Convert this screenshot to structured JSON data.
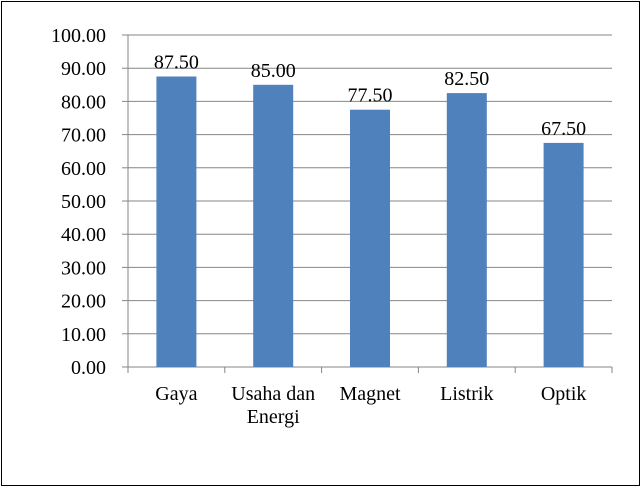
{
  "chart_data": {
    "type": "bar",
    "categories": [
      "Gaya",
      "Usaha dan Energi",
      "Magnet",
      "Listrik",
      "Optik"
    ],
    "values": [
      87.5,
      85,
      77.5,
      82.5,
      67.5
    ],
    "value_labels": [
      "87.50",
      "85.00",
      "77.50",
      "82.50",
      "67.50"
    ],
    "color": "#4f81bd",
    "ylim": [
      0,
      100
    ],
    "yticks": [
      {
        "value": 0,
        "label": "0.00"
      },
      {
        "value": 10,
        "label": "10.00"
      },
      {
        "value": 20,
        "label": "20.00"
      },
      {
        "value": 30,
        "label": "30.00"
      },
      {
        "value": 40,
        "label": "40.00"
      },
      {
        "value": 50,
        "label": "50.00"
      },
      {
        "value": 60,
        "label": "60.00"
      },
      {
        "value": 70,
        "label": "70.00"
      },
      {
        "value": 80,
        "label": "80.00"
      },
      {
        "value": 90,
        "label": "90.00"
      },
      {
        "value": 100,
        "label": "100.00"
      }
    ],
    "grid": true
  }
}
